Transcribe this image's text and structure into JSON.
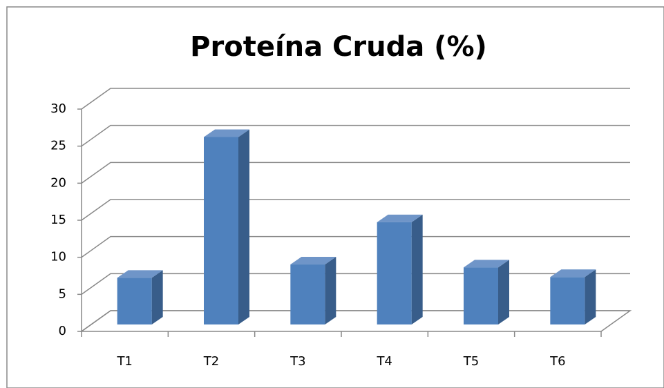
{
  "chart_data": {
    "type": "bar3d",
    "title": "Proteína Cruda (%)",
    "categories": [
      "T1",
      "T2",
      "T3",
      "T4",
      "T5",
      "T6"
    ],
    "values": [
      6.3,
      25.3,
      8.1,
      13.8,
      7.7,
      6.4
    ],
    "color": "#4f81bd",
    "ylim": [
      0,
      30
    ],
    "yticks": [
      0,
      5,
      10,
      15,
      20,
      25,
      30
    ],
    "grid": true
  }
}
